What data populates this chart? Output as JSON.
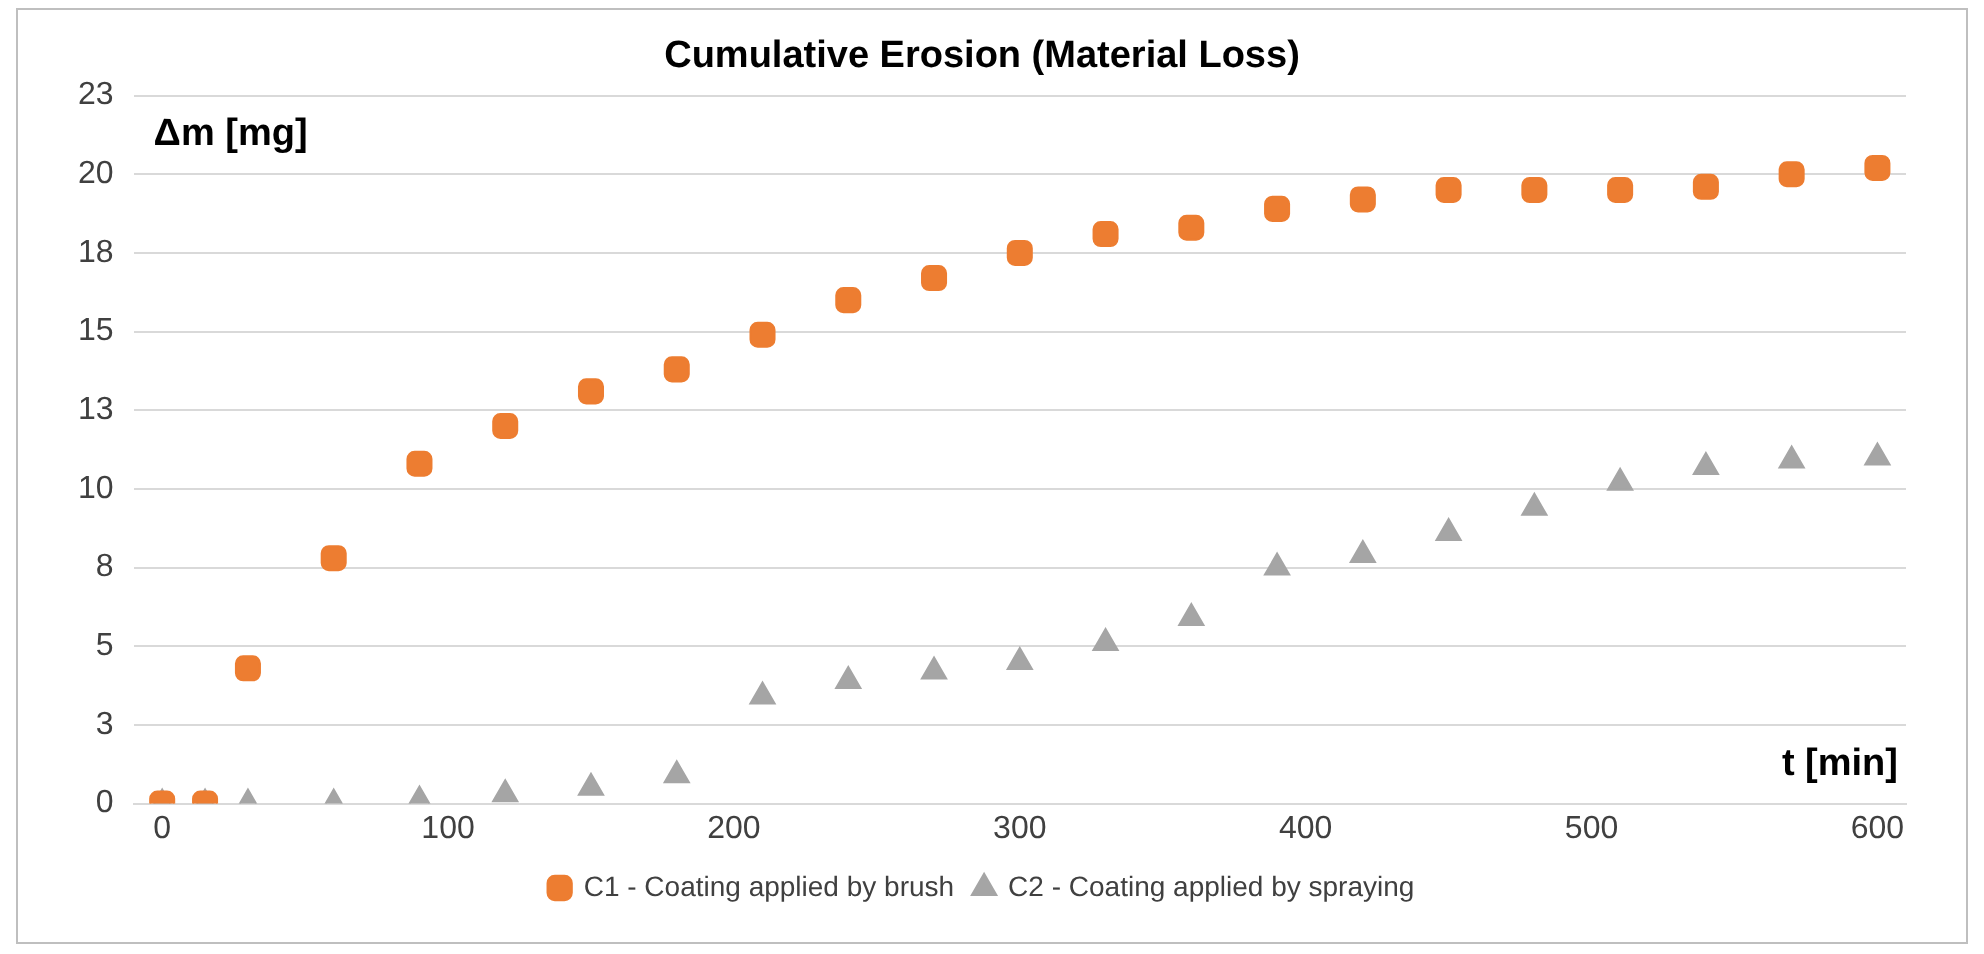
{
  "chart_data": {
    "type": "scatter",
    "title": "Cumulative Erosion (Material Loss)",
    "xlabel": "t [min]",
    "ylabel": "Δm [mg]",
    "x": [
      0,
      15,
      30,
      60,
      90,
      120,
      150,
      180,
      210,
      240,
      270,
      300,
      330,
      360,
      390,
      420,
      450,
      480,
      510,
      540,
      570,
      600
    ],
    "series": [
      {
        "name": "C1 - Coating applied by brush",
        "color": "#ed7d31",
        "marker": "square",
        "values": [
          0,
          0,
          4.3,
          7.8,
          10.8,
          12.0,
          13.1,
          13.8,
          14.9,
          16.0,
          16.7,
          17.5,
          18.1,
          18.3,
          18.9,
          19.2,
          19.5,
          19.5,
          19.5,
          19.6,
          20.0,
          20.2
        ]
      },
      {
        "name": "C2 - Coating applied by spraying",
        "color": "#a5a5a5",
        "marker": "triangle",
        "values": [
          0,
          0,
          0,
          0,
          0.1,
          0.3,
          0.5,
          0.9,
          3.4,
          3.9,
          4.2,
          4.5,
          5.1,
          5.9,
          7.5,
          7.9,
          8.6,
          9.4,
          10.2,
          10.7,
          10.9,
          11.0
        ]
      }
    ],
    "xlim": [
      -10,
      610
    ],
    "xticks": [
      0,
      100,
      200,
      300,
      400,
      500,
      600
    ],
    "ylim": [
      0,
      22.5
    ],
    "yticks": [
      0,
      {
        "value": 2.5,
        "label": "3"
      },
      5,
      {
        "value": 7.5,
        "label": "8"
      },
      10,
      {
        "value": 12.5,
        "label": "13"
      },
      15,
      {
        "value": 17.5,
        "label": "18"
      },
      20,
      {
        "value": 22.5,
        "label": "23"
      }
    ],
    "grid": "y",
    "legend": "bottom"
  }
}
